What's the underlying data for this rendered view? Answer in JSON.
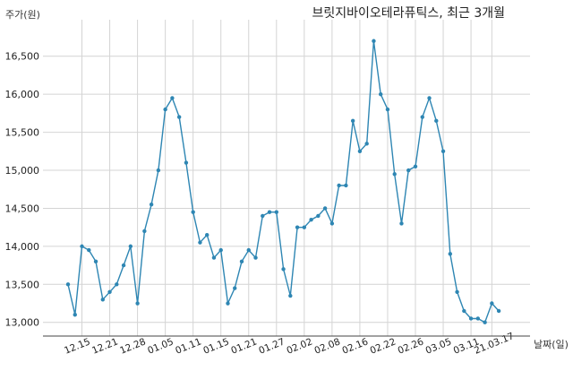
{
  "chart_data": {
    "type": "line",
    "title": "브릿지바이오테라퓨틱스, 최근 3개월",
    "ylabel": "주가(원)",
    "xlabel": "날짜(일)",
    "ylim": [
      12820,
      16980
    ],
    "yticks": [
      13000,
      13500,
      14000,
      14500,
      15000,
      15500,
      16000,
      16500
    ],
    "ytick_labels": [
      "13,000",
      "13,500",
      "14,000",
      "14,500",
      "15,000",
      "15,500",
      "16,000",
      "16,500"
    ],
    "xticks": [
      {
        "index": 2,
        "label": "12.15"
      },
      {
        "index": 6,
        "label": "12.21"
      },
      {
        "index": 10,
        "label": "12.28"
      },
      {
        "index": 14,
        "label": "01.05"
      },
      {
        "index": 18,
        "label": "01.11"
      },
      {
        "index": 22,
        "label": "01.15"
      },
      {
        "index": 26,
        "label": "01.21"
      },
      {
        "index": 30,
        "label": "01.27"
      },
      {
        "index": 34,
        "label": "02.02"
      },
      {
        "index": 38,
        "label": "02.08"
      },
      {
        "index": 42,
        "label": "02.16"
      },
      {
        "index": 46,
        "label": "02.22"
      },
      {
        "index": 50,
        "label": "02.26"
      },
      {
        "index": 54,
        "label": "03.05"
      },
      {
        "index": 58,
        "label": "03.11"
      },
      {
        "index": 61,
        "label": "21.03.17"
      }
    ],
    "values": [
      13500,
      13100,
      14000,
      13950,
      13800,
      13300,
      13400,
      13500,
      13750,
      14000,
      13250,
      14200,
      14550,
      15000,
      15800,
      15950,
      15700,
      15100,
      14450,
      14050,
      14150,
      13850,
      13950,
      13250,
      13450,
      13800,
      13950,
      13850,
      14400,
      14450,
      14450,
      13700,
      13350,
      14250,
      14250,
      14350,
      14400,
      14500,
      14300,
      14800,
      14800,
      15650,
      15250,
      15350,
      16700,
      16000,
      15800,
      14950,
      14300,
      15000,
      15050,
      15700,
      15950,
      15650,
      15250,
      13900,
      13400,
      13150,
      13050,
      13050,
      13000,
      13250,
      13150
    ],
    "color": "#2e86b3"
  }
}
